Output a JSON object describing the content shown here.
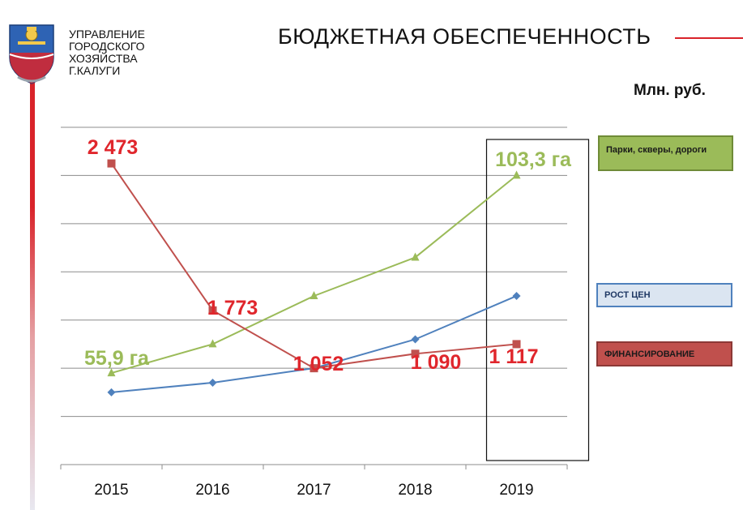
{
  "header": {
    "org_lines": [
      "УПРАВЛЕНИЕ",
      "ГОРОДСКОГО",
      "ХОЗЯЙСТВА",
      "Г.КАЛУГИ"
    ],
    "title": "БЮДЖЕТНАЯ  ОБЕСПЕЧЕННОСТЬ",
    "units": "Млн. руб."
  },
  "colors": {
    "brand_red": "#d9232a",
    "parks": "#9bbb59",
    "prices": "#4f81bd",
    "funding": "#c0504d",
    "label_red": "#e0262c"
  },
  "chart_data": {
    "type": "line",
    "categories": [
      "2015",
      "2016",
      "2017",
      "2018",
      "2019"
    ],
    "ylim": [
      0,
      7
    ],
    "grid": true,
    "legend_position": "right",
    "highlight_category": "2019",
    "series": [
      {
        "name": "Парки, скверы, дороги",
        "key": "parks",
        "values": [
          1.9,
          2.5,
          3.5,
          4.3,
          6.0
        ],
        "marker": "triangle",
        "labels": [
          {
            "index": 0,
            "text": "55,9 га"
          },
          {
            "index": 4,
            "text": "103,3 га"
          }
        ]
      },
      {
        "name": "РОСТ ЦЕН",
        "key": "prices",
        "values": [
          1.5,
          1.7,
          2.0,
          2.6,
          3.5
        ],
        "marker": "diamond",
        "labels": []
      },
      {
        "name": "ФИНАНСИРОВАНИЕ",
        "key": "funding",
        "values": [
          6.25,
          3.2,
          2.0,
          2.3,
          2.5
        ],
        "marker": "square",
        "labels": [
          {
            "index": 0,
            "text": "2 473"
          },
          {
            "index": 1,
            "text": "1 773"
          },
          {
            "index": 2,
            "text": "1 052"
          },
          {
            "index": 3,
            "text": "1 090"
          },
          {
            "index": 4,
            "text": "1 117"
          }
        ]
      }
    ]
  }
}
